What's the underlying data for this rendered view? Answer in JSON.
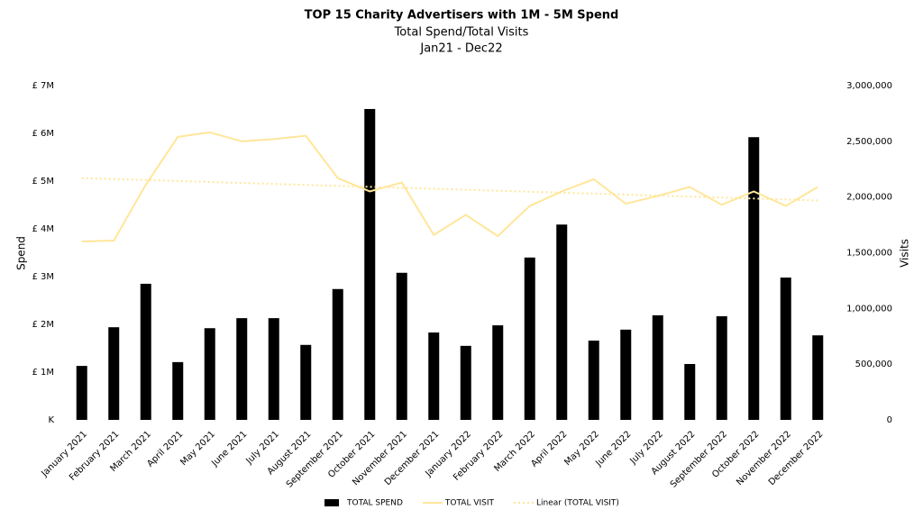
{
  "chart_data": {
    "type": "bar-line",
    "title": "TOP 15 Charity Advertisers with 1M - 5M Spend",
    "subtitle": [
      "Total Spend/Total Visits",
      "Jan21 - Dec22"
    ],
    "y_label": "Spend",
    "y2_label": "Visits",
    "categories": [
      "January 2021",
      "February 2021",
      "March 2021",
      "April 2021",
      "May 2021",
      "June 2021",
      "July 2021",
      "August 2021",
      "September 2021",
      "October 2021",
      "November 2021",
      "December 2021",
      "January 2022",
      "February 2022",
      "March 2022",
      "April 2022",
      "May 2022",
      "June 2022",
      "July 2022",
      "August 2022",
      "September 2022",
      "October 2022",
      "November 2022",
      "December 2022"
    ],
    "series": [
      {
        "name": "TOTAL SPEND",
        "kind": "bar",
        "color": "#000000",
        "values": [
          1130000,
          1940000,
          2850000,
          1210000,
          1920000,
          2130000,
          2130000,
          1570000,
          2740000,
          6510000,
          3080000,
          1830000,
          1550000,
          1980000,
          3400000,
          4090000,
          1660000,
          1890000,
          2190000,
          1170000,
          2170000,
          5920000,
          2980000,
          1770000
        ]
      },
      {
        "name": "TOTAL VISIT",
        "kind": "line",
        "axis": "y2",
        "color": "#ffe699",
        "values": [
          1601000,
          1609000,
          2110000,
          2540000,
          2580000,
          2500000,
          2520000,
          2550000,
          2170000,
          2050000,
          2130000,
          1660000,
          1840000,
          1650000,
          1920000,
          2050000,
          2160000,
          1940000,
          2010000,
          2090000,
          1930000,
          2050000,
          1920000,
          2090000
        ]
      }
    ],
    "trendline": {
      "name": "Linear (TOTAL VISIT)",
      "of": "TOTAL VISIT",
      "color": "#ffe699"
    },
    "ylim": [
      0,
      7000000
    ],
    "yticks": [
      {
        "value": 0,
        "label": "K"
      },
      {
        "value": 1000000,
        "label": "£ 1M"
      },
      {
        "value": 2000000,
        "label": "£ 2M"
      },
      {
        "value": 3000000,
        "label": "£ 3M"
      },
      {
        "value": 4000000,
        "label": "£ 4M"
      },
      {
        "value": 5000000,
        "label": "£ 5M"
      },
      {
        "value": 6000000,
        "label": "£ 6M"
      },
      {
        "value": 7000000,
        "label": "£ 7M"
      }
    ],
    "y2lim": [
      0,
      3000000
    ],
    "y2ticks": [
      0,
      {
        "value": 500000,
        "label": "500,000"
      },
      {
        "value": 1000000,
        "label": "1,000,000"
      },
      {
        "value": 1500000,
        "label": "1,500,000"
      },
      {
        "value": 2000000,
        "label": "2,000,000"
      },
      {
        "value": 2500000,
        "label": "2,500,000"
      },
      {
        "value": 3000000,
        "label": "3,000,000"
      }
    ],
    "grid": false,
    "legend": "bottom"
  }
}
